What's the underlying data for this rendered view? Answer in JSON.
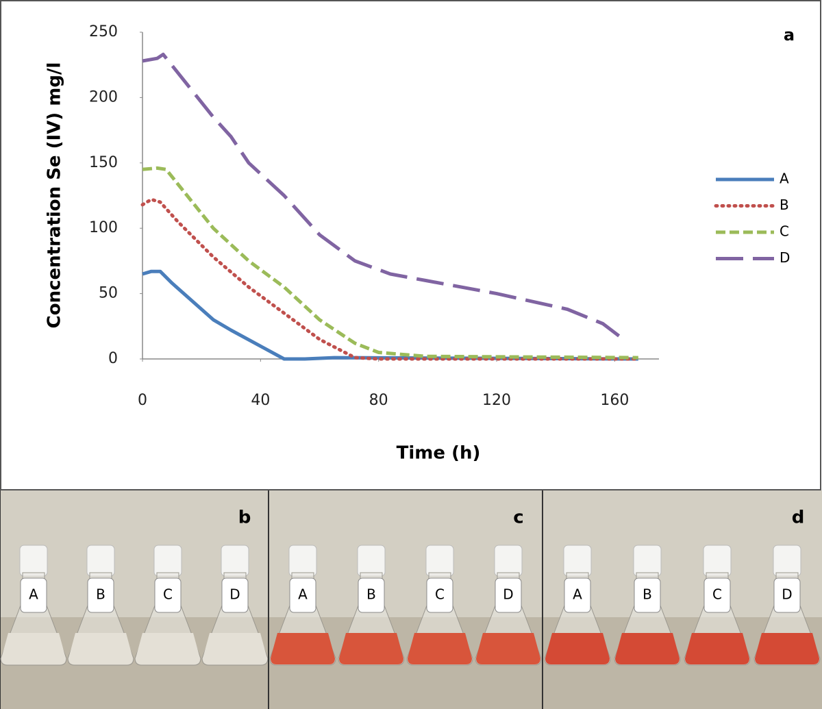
{
  "chart_data": {
    "type": "line",
    "panel_label": "a",
    "x_label": "Time (h)",
    "y_label": "Concentration Se (IV) mg/l",
    "xlim": [
      0,
      175
    ],
    "xticks": [
      0,
      40,
      80,
      120,
      160
    ],
    "ylim": [
      0,
      250
    ],
    "yticks": [
      0,
      50,
      100,
      150,
      200,
      250
    ],
    "series": [
      {
        "name": "A",
        "color": "#4a7ebb",
        "dash": "solid",
        "x": [
          0,
          3,
          6,
          10,
          24,
          30,
          48,
          55,
          65,
          168
        ],
        "values": [
          65,
          67,
          67,
          58,
          30,
          22,
          0,
          0,
          1,
          0
        ]
      },
      {
        "name": "B",
        "color": "#c0504d",
        "dash": "dotted",
        "x": [
          0,
          3,
          6,
          12,
          24,
          36,
          48,
          60,
          72,
          80,
          168
        ],
        "values": [
          118,
          122,
          120,
          105,
          78,
          55,
          35,
          15,
          1,
          0,
          0
        ]
      },
      {
        "name": "C",
        "color": "#9bbb59",
        "dash": "dashed",
        "x": [
          0,
          5,
          8,
          24,
          36,
          48,
          60,
          72,
          80,
          96,
          168
        ],
        "values": [
          145,
          146,
          145,
          100,
          75,
          55,
          30,
          12,
          5,
          2,
          1
        ]
      },
      {
        "name": "D",
        "color": "#8064a2",
        "dash": "long-dash",
        "x": [
          0,
          5,
          7,
          24,
          30,
          36,
          48,
          60,
          72,
          84,
          96,
          120,
          144,
          156,
          163
        ],
        "values": [
          228,
          230,
          233,
          185,
          170,
          150,
          125,
          95,
          75,
          65,
          60,
          50,
          38,
          27,
          15
        ]
      }
    ]
  },
  "panels": [
    {
      "label": "b",
      "liquid_color": "#e4e0d6",
      "flasks": [
        "A",
        "B",
        "C",
        "D"
      ]
    },
    {
      "label": "c",
      "liquid_color": "#d8553b",
      "flasks": [
        "A",
        "B",
        "C",
        "D"
      ]
    },
    {
      "label": "d",
      "liquid_color": "#d44a35",
      "flasks": [
        "A",
        "B",
        "C",
        "D"
      ]
    }
  ]
}
